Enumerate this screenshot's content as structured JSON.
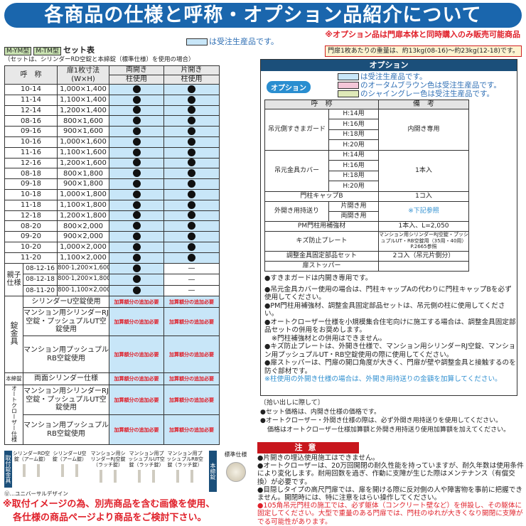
{
  "title": "各商品の仕様と呼称・オプション品紹介について",
  "legend_made_to_order": "は受注生産品です。",
  "set_table": {
    "tag1": "M-YM型",
    "tag2": "M-TM型",
    "title": "セット表",
    "subtitle": "（セットは、シリンダーRD空錠と本締錠（標準仕様）を使用の場合）",
    "headers": {
      "name": "呼　称",
      "size": "扉1枚寸法\n(W×H)",
      "double": "両開き",
      "single": "片開き",
      "post": "柱使用"
    },
    "rows": [
      [
        "10-14",
        "1,000×1,400"
      ],
      [
        "11-14",
        "1,100×1,400"
      ],
      [
        "12-14",
        "1,200×1,400"
      ],
      [
        "08-16",
        "800×1,600"
      ],
      [
        "09-16",
        "900×1,600"
      ],
      [
        "10-16",
        "1,000×1,600"
      ],
      [
        "11-16",
        "1,100×1,600"
      ],
      [
        "12-16",
        "1,200×1,600"
      ],
      [
        "08-18",
        "800×1,800"
      ],
      [
        "09-18",
        "900×1,800"
      ],
      [
        "10-18",
        "1,000×1,800"
      ],
      [
        "11-18",
        "1,100×1,800"
      ],
      [
        "12-18",
        "1,200×1,800"
      ],
      [
        "08-20",
        "800×2,000"
      ],
      [
        "09-20",
        "900×2,000"
      ],
      [
        "10-20",
        "1,000×2,000"
      ],
      [
        "11-20",
        "1,100×2,000"
      ]
    ],
    "parent_child_label": "親子仕様",
    "parent_child_rows": [
      [
        "08-12-16",
        "800·1,200×1,600"
      ],
      [
        "08-12-18",
        "800·1,200×1,800"
      ],
      [
        "08-11-20",
        "800·1,100×2,000"
      ]
    ],
    "dash": "—",
    "extra_label": "加算額分の追加必要",
    "lock_label": "錠金具",
    "lock_rows": [
      "シリンダーU空錠使用",
      "マンション用シリンダーRJ空錠・プッシュプルUT空錠使用",
      "マンション用プッシュプルRB空錠使用"
    ],
    "deadbolt_label": "本締錠",
    "deadbolt_row": "両面シリンダー仕様",
    "closer_label": "オートクローザー仕様",
    "closer_rows": [
      "マンション用シリンダーRJ空錠・プッシュプルUT空錠使用",
      "マンション用プッシュプルRB空錠使用"
    ]
  },
  "options_note": "※オプション品は門扉本体と同時購入のみ販売可能商品",
  "weight_note": "門扉1枚あたりの重量は、約13kg(08-16)～約23kg(12-18)です。",
  "options": {
    "header": "オプション",
    "badge": "オプション",
    "legend": [
      "は受注生産品です。",
      "のオータムブラウン色は受注生産品です。",
      "のシャイングレー色は受注生産品です。"
    ],
    "legend_colors": [
      "#c8e6f8",
      "#f4c6d8",
      "#dfe9b8"
    ],
    "th_name": "呼　称",
    "th_note": "備　考",
    "guard": "吊元側すきまガード",
    "guard_note": "内開き専用",
    "cover": "吊元金具カバー",
    "cover_note": "1本入",
    "heights": [
      "H:14用",
      "H:16用",
      "H:18用",
      "H:20用"
    ],
    "capB": "門柱キャップB",
    "capB_note": "1コ入",
    "outswing": "外開き用持送り",
    "outswing_single": "片開き用",
    "outswing_double": "両開き用",
    "outswing_note": "※下記参照",
    "pm": "PM門柱用補強材",
    "pm_note": "1本入、L=2,050",
    "plate": "キズ防止プレート",
    "plate_note": "マンション用シリンダーRJ空錠・プッシュプルUT・RB空錠用（35用・40用）P.2665参照",
    "adjust": "調整金具固定部品セット",
    "adjust_note": "2コ入（吊元片側分）",
    "stopper": "扉ストッパー",
    "notes": [
      "●すきまガードは内開き専用です。",
      "●吊元金具カバー使用の場合は、門柱キャップAの代わりに門柱キャップBを必ず使用してください。",
      "●PM門柱用補強材、調整金具固定部品セットは、吊元側の柱に使用してください。",
      "●オートクローザー仕様を小規模集合住宅向けに施工する場合は、調整金具固定部品セットの併用をお奨めします。",
      "※門柱補強材との併用はできません。",
      "●キズ防止プレートは、外開き仕様で、マンション用シリンダーRJ空錠、マンション用プッシュプルUT・RB空錠使用の際に使用してください。",
      "●扉ストッパーは、門扉の開口角度が大きく、門扉が壁や調整金具と接触するのを防ぐ部材です。",
      "※柱使用の外開き仕様の場合は、外開き用持送りの金額を加算してください。"
    ]
  },
  "pickup": {
    "title": "〔拾い出しに際して〕",
    "items": [
      "●セット価格は、内開き仕様の価格です。",
      "●オートクローザー・外開き仕様の際は、必ず外開き用持送りを使用してください。",
      "価格はオートクローザー仕様加算額と外開き用持送り使用加算額を加えてください。"
    ]
  },
  "caution": {
    "title": "注意",
    "items": [
      "●片開きの埋込使用施工はできません。",
      "●オートクローザーは、20万回開閉の耐久性能を持っていますが、耐久年数は使用条件により変化します。耐用回数を過ぎ、作動に支障が生じた際はメンテナンス（有償交換）が必要です。",
      "●目隠しタイプの高尺門扉では、扉を開ける際に反対側の人や障害物を事前に把握できません。開閉時には、特に注意をはらい操作してください。",
      "●105角吊元門柱の施工では、必ず躯体（コンクリート壁など）を併設し、その躯体に固定してください。大型で重量のある門扉では、門柱のゆれが大きくなり開閉に支障がでる可能性があります。"
    ]
  },
  "hardware": {
    "side_label": "取付錠金具",
    "items": [
      "シリンダーRD空錠（アーム錠）",
      "シリンダーU空錠（アーム錠）",
      "マンション用シリンダーRJ空錠（ラッチ錠）",
      "マンション用プッシュプルUT空錠（ラッチ錠）",
      "マンション用プッシュプルRB空錠（ラッチ錠）"
    ],
    "deadbolt_side": "本締錠",
    "standard": "標準仕様",
    "ud_note": "Ⓤ…ユニバーサルデザイン"
  },
  "bottom_note": [
    "※取付イメージの為、別売商品を含む画像を使用、",
    "各仕様の商品ページより商品をご検討下さい。"
  ]
}
